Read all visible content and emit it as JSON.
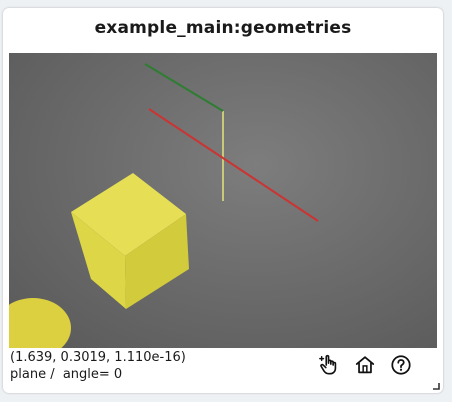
{
  "window": {
    "title": "example_main:geometries"
  },
  "status": {
    "coordinates": "(1.639, 0.3019, 1.110e-16)",
    "mode_line": "plane /  angle= 0"
  },
  "toolbar": {
    "pan_icon": "pointer-hand-icon",
    "home_icon": "home-icon",
    "help_icon": "help-icon"
  },
  "colors": {
    "axis_x": "#cc3333",
    "axis_y": "#2e7d32",
    "axis_z": "#c9c97a",
    "cube_front": "#e3dc4a",
    "cube_top": "#eae25a",
    "cube_side": "#cfc83a",
    "sphere": "#dcd040",
    "viewport_bg": "#6f6f6f"
  }
}
